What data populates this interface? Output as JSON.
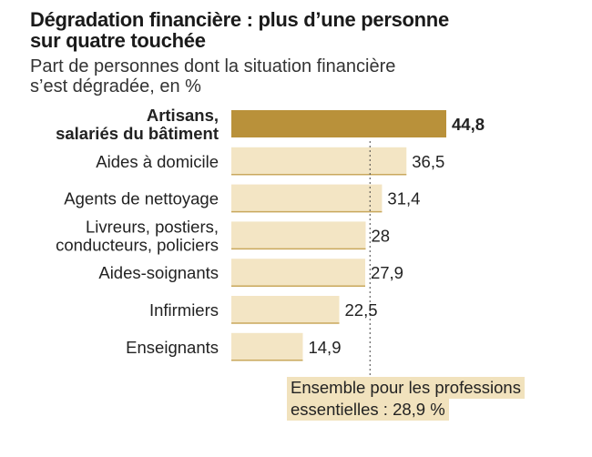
{
  "title_lines": [
    "Dégradation financière : plus d’une personne",
    "sur quatre touchée"
  ],
  "subtitle_lines": [
    "Part de personnes dont la situation financière",
    "s’est dégradée, en %"
  ],
  "note_lines": [
    "Ensemble pour les professions",
    "essentielles : 28,9 %"
  ],
  "colors": {
    "highlight": "#b9913a",
    "bar": "#f3e5c4",
    "bar_underline": "#c9a85c",
    "reference_line": "#444444",
    "note_bg": "#f1e2bd"
  },
  "chart_data": {
    "type": "bar",
    "orientation": "horizontal",
    "categories": [
      [
        "Artisans,",
        "salariés du bâtiment"
      ],
      [
        "Aides à domicile"
      ],
      [
        "Agents de nettoyage"
      ],
      [
        "Livreurs, postiers,",
        "conducteurs, policiers"
      ],
      [
        "Aides-soignants"
      ],
      [
        "Infirmiers"
      ],
      [
        "Enseignants"
      ]
    ],
    "values": [
      44.8,
      36.5,
      31.4,
      28,
      27.9,
      22.5,
      14.9
    ],
    "value_labels": [
      "44,8",
      "36,5",
      "31,4",
      "28",
      "27,9",
      "22,5",
      "14,9"
    ],
    "highlighted_index": 0,
    "reference_value": 28.9,
    "xlim": [
      0,
      44.8
    ]
  }
}
